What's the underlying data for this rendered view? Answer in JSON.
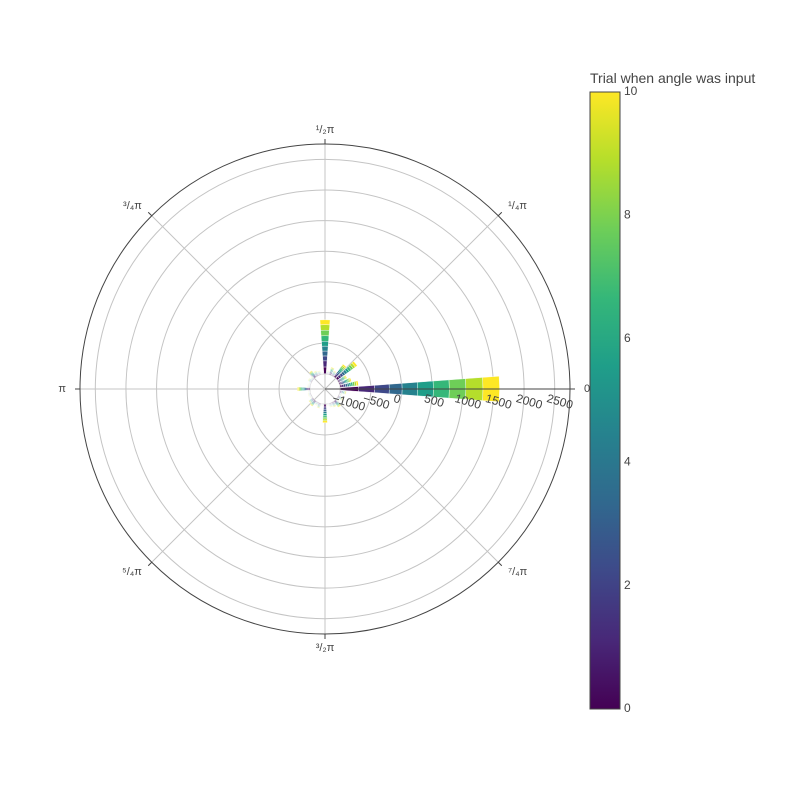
{
  "chart_data": {
    "type": "barpolar",
    "angular_unit": "radians",
    "angular_ticks": [
      {
        "angle": 0,
        "label": "0"
      },
      {
        "angle": 45,
        "label": "¹/₄π"
      },
      {
        "angle": 90,
        "label": "¹/₂π"
      },
      {
        "angle": 135,
        "label": "³/₄π"
      },
      {
        "angle": 180,
        "label": "π"
      },
      {
        "angle": 225,
        "label": "⁵/₄π"
      },
      {
        "angle": 270,
        "label": "³/₂π"
      },
      {
        "angle": 315,
        "label": "⁷/₄π"
      }
    ],
    "radial_axis": {
      "range": [
        -1250,
        2750
      ],
      "ticks": [
        -1000,
        -500,
        0,
        500,
        1000,
        1500,
        2000,
        2500
      ],
      "tick_labels": [
        "−1000",
        "−500",
        "0",
        "500",
        "1000",
        "1500",
        "2000",
        "2500"
      ],
      "gridlines": [
        -1000,
        -500,
        0,
        500,
        1000,
        1500,
        2000,
        2500
      ]
    },
    "base": -1000,
    "bin_width_deg": 10,
    "bars": [
      {
        "angle": 0,
        "counts": [
          0,
          300,
          560,
          800,
          1010,
          1260,
          1520,
          1780,
          2050,
          2330,
          2600
        ]
      },
      {
        "angle": 10,
        "counts": [
          0,
          30,
          60,
          90,
          120,
          150,
          180,
          210,
          240,
          270,
          300
        ]
      },
      {
        "angle": 20,
        "counts": [
          0,
          20,
          40,
          60,
          80,
          100,
          120,
          140,
          160,
          180,
          200
        ]
      },
      {
        "angle": 30,
        "counts": [
          0,
          15,
          30,
          45,
          60,
          75,
          90,
          105,
          120,
          135,
          150
        ]
      },
      {
        "angle": 40,
        "counts": [
          0,
          40,
          80,
          120,
          160,
          200,
          240,
          280,
          320,
          360,
          400
        ]
      },
      {
        "angle": 50,
        "counts": [
          0,
          25,
          50,
          75,
          100,
          125,
          150,
          175,
          200,
          225,
          250
        ]
      },
      {
        "angle": 60,
        "counts": [
          0,
          8,
          16,
          24,
          32,
          40,
          48,
          56,
          64,
          72,
          80
        ]
      },
      {
        "angle": 70,
        "counts": [
          0,
          12,
          24,
          36,
          48,
          60,
          72,
          84,
          96,
          108,
          120
        ]
      },
      {
        "angle": 80,
        "counts": [
          0,
          5,
          10,
          15,
          20,
          25,
          30,
          35,
          40,
          45,
          50
        ]
      },
      {
        "angle": 90,
        "counts": [
          0,
          110,
          210,
          290,
          370,
          450,
          530,
          620,
          710,
          800,
          880
        ]
      },
      {
        "angle": 100,
        "counts": [
          0,
          3,
          6,
          9,
          12,
          15,
          18,
          21,
          24,
          27,
          30
        ]
      },
      {
        "angle": 110,
        "counts": [
          0,
          6,
          12,
          18,
          24,
          30,
          36,
          42,
          48,
          54,
          60
        ]
      },
      {
        "angle": 120,
        "counts": [
          0,
          8,
          16,
          24,
          32,
          40,
          48,
          56,
          64,
          72,
          80
        ]
      },
      {
        "angle": 130,
        "counts": [
          0,
          12,
          24,
          36,
          48,
          60,
          72,
          84,
          96,
          108,
          120
        ]
      },
      {
        "angle": 140,
        "counts": [
          0,
          4,
          8,
          12,
          16,
          20,
          24,
          28,
          32,
          36,
          40
        ]
      },
      {
        "angle": 150,
        "counts": [
          0,
          6,
          12,
          18,
          24,
          30,
          36,
          42,
          48,
          54,
          60
        ]
      },
      {
        "angle": 160,
        "counts": [
          0,
          3,
          6,
          9,
          12,
          15,
          18,
          21,
          24,
          27,
          30
        ]
      },
      {
        "angle": 170,
        "counts": [
          0,
          4,
          8,
          12,
          16,
          20,
          24,
          28,
          32,
          36,
          40
        ]
      },
      {
        "angle": 180,
        "counts": [
          0,
          20,
          40,
          60,
          80,
          100,
          120,
          140,
          160,
          180,
          200
        ]
      },
      {
        "angle": 190,
        "counts": [
          0,
          3,
          6,
          9,
          12,
          15,
          18,
          21,
          24,
          27,
          30
        ]
      },
      {
        "angle": 200,
        "counts": [
          0,
          4,
          8,
          12,
          16,
          20,
          24,
          28,
          32,
          36,
          40
        ]
      },
      {
        "angle": 210,
        "counts": [
          0,
          3,
          6,
          9,
          12,
          15,
          18,
          21,
          24,
          27,
          30
        ]
      },
      {
        "angle": 220,
        "counts": [
          0,
          8,
          16,
          24,
          32,
          40,
          48,
          56,
          64,
          72,
          80
        ]
      },
      {
        "angle": 230,
        "counts": [
          0,
          10,
          20,
          30,
          40,
          50,
          60,
          70,
          80,
          90,
          100
        ]
      },
      {
        "angle": 240,
        "counts": [
          0,
          5,
          10,
          15,
          20,
          25,
          30,
          35,
          40,
          45,
          50
        ]
      },
      {
        "angle": 250,
        "counts": [
          0,
          8,
          16,
          24,
          32,
          40,
          48,
          56,
          64,
          72,
          80
        ]
      },
      {
        "angle": 260,
        "counts": [
          0,
          3,
          6,
          9,
          12,
          15,
          18,
          21,
          24,
          27,
          30
        ]
      },
      {
        "angle": 270,
        "counts": [
          0,
          30,
          60,
          90,
          120,
          150,
          180,
          210,
          240,
          270,
          300
        ]
      },
      {
        "angle": 280,
        "counts": [
          0,
          3,
          6,
          9,
          12,
          15,
          18,
          21,
          24,
          27,
          30
        ]
      },
      {
        "angle": 290,
        "counts": [
          0,
          6,
          12,
          18,
          24,
          30,
          36,
          42,
          48,
          54,
          60
        ]
      },
      {
        "angle": 300,
        "counts": [
          0,
          8,
          16,
          24,
          32,
          40,
          48,
          56,
          64,
          72,
          80
        ]
      },
      {
        "angle": 310,
        "counts": [
          0,
          12,
          24,
          36,
          48,
          60,
          72,
          84,
          96,
          108,
          120
        ]
      },
      {
        "angle": 320,
        "counts": [
          0,
          4,
          8,
          12,
          16,
          20,
          24,
          28,
          32,
          36,
          40
        ]
      },
      {
        "angle": 330,
        "counts": [
          0,
          8,
          16,
          24,
          32,
          40,
          48,
          56,
          64,
          72,
          80
        ]
      },
      {
        "angle": 340,
        "counts": [
          0,
          4,
          8,
          12,
          16,
          20,
          24,
          28,
          32,
          36,
          40
        ]
      },
      {
        "angle": 350,
        "counts": [
          0,
          10,
          20,
          30,
          40,
          50,
          60,
          70,
          80,
          90,
          100
        ]
      }
    ],
    "colorbar": {
      "title": "Trial when angle was input",
      "range": [
        0,
        10
      ],
      "ticks": [
        0,
        2,
        4,
        6,
        8,
        10
      ],
      "colorscale": "Viridis",
      "colors": [
        "#440154",
        "#482878",
        "#3e4989",
        "#31688e",
        "#26828e",
        "#1f9e89",
        "#35b779",
        "#6ece58",
        "#b5de2b",
        "#fde725"
      ]
    },
    "grid": true,
    "legend": "none"
  }
}
